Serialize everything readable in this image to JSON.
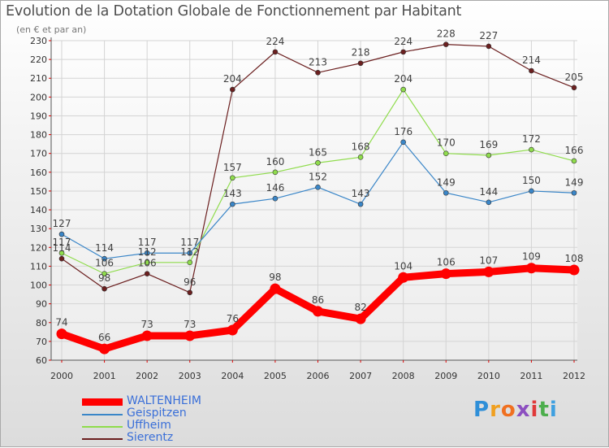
{
  "chart_data": {
    "type": "line",
    "title": "Evolution de la Dotation Globale de Fonctionnement par Habitant",
    "subtitle": "(en € et par an)",
    "categories": [
      "2000",
      "2001",
      "2002",
      "2003",
      "2004",
      "2005",
      "2006",
      "2007",
      "2008",
      "2009",
      "2010",
      "2011",
      "2012"
    ],
    "ylim": [
      60,
      230
    ],
    "yticks": [
      60,
      70,
      80,
      90,
      100,
      110,
      120,
      130,
      140,
      150,
      160,
      170,
      180,
      190,
      200,
      210,
      220,
      230
    ],
    "series": [
      {
        "name": "WALTENHEIM",
        "color": "#ff0000",
        "values": [
          74,
          66,
          73,
          73,
          76,
          98,
          86,
          82,
          104,
          106,
          107,
          109,
          108
        ],
        "highlight": true
      },
      {
        "name": "Geispitzen",
        "color": "#3a86c8",
        "values": [
          127,
          114,
          117,
          117,
          143,
          146,
          152,
          143,
          176,
          149,
          144,
          150,
          149
        ]
      },
      {
        "name": "Uffheim",
        "color": "#8fdc4c",
        "values": [
          117,
          106,
          112,
          112,
          157,
          160,
          165,
          168,
          204,
          170,
          169,
          172,
          166
        ]
      },
      {
        "name": "Sierentz",
        "color": "#6b1f1f",
        "values": [
          114,
          98,
          106,
          96,
          204,
          224,
          213,
          218,
          224,
          228,
          227,
          214,
          205
        ]
      }
    ]
  },
  "legend_colors": {
    "WALTENHEIM": "#3a6fd8",
    "Geispitzen": "#3a6fd8",
    "Uffheim": "#3a6fd8",
    "Sierentz": "#3a6fd8"
  },
  "logo": {
    "letters": [
      "P",
      "r",
      "o",
      "x",
      "i",
      "t",
      "i"
    ],
    "colors": [
      "#2f8fd8",
      "#f0a020",
      "#f07020",
      "#8c4fc0",
      "#e03a3a",
      "#4cae4c",
      "#3fa0e0"
    ]
  }
}
